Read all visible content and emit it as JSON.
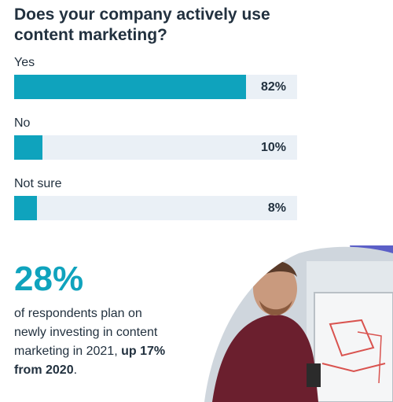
{
  "chart_data": {
    "type": "bar",
    "orientation": "horizontal",
    "title": "Does your company actively use content marketing?",
    "categories": [
      "Yes",
      "No",
      "Not sure"
    ],
    "values": [
      82,
      10,
      8
    ],
    "value_labels": [
      "82%",
      "10%",
      "8%"
    ],
    "xlim": [
      0,
      100
    ],
    "grid": false,
    "legend": "none"
  },
  "stat": {
    "value": "28%",
    "text_lines": [
      "of respondents plan on",
      "newly investing in content",
      "marketing in 2021, "
    ],
    "emphasis": "up 17% from 2020",
    "trailing": "."
  },
  "colors": {
    "bar": "#0fa3bd",
    "track": "#eaf0f6",
    "text": "#22313f",
    "accent_shape": "#5b5fc7"
  }
}
